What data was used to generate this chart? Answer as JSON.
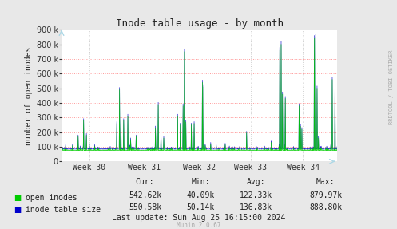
{
  "title": "Inode table usage - by month",
  "ylabel": "number of open inodes",
  "xlabel_ticks": [
    "Week 30",
    "Week 31",
    "Week 32",
    "Week 33",
    "Week 34"
  ],
  "ylim": [
    0,
    900000
  ],
  "yticks": [
    0,
    100000,
    200000,
    300000,
    400000,
    500000,
    600000,
    700000,
    800000,
    900000
  ],
  "ytick_labels": [
    "0",
    "100 k",
    "200 k",
    "300 k",
    "400 k",
    "500 k",
    "600 k",
    "700 k",
    "800 k",
    "900 k"
  ],
  "bg_color": "#e8e8e8",
  "plot_bg_color": "#ffffff",
  "grid_color_h": "#ff9999",
  "grid_color_v": "#cccccc",
  "line1_color": "#00cc00",
  "line2_color": "#0000cc",
  "stats_cur": [
    "542.62k",
    "550.58k"
  ],
  "stats_min": [
    "40.09k",
    "50.14k"
  ],
  "stats_avg": [
    "122.33k",
    "136.83k"
  ],
  "stats_max": [
    "879.97k",
    "888.80k"
  ],
  "last_update": "Last update: Sun Aug 25 16:15:00 2024",
  "munin_label": "Munin 2.0.67",
  "rrdtool_label": "RRDTOOL / TOBI OETIKER"
}
